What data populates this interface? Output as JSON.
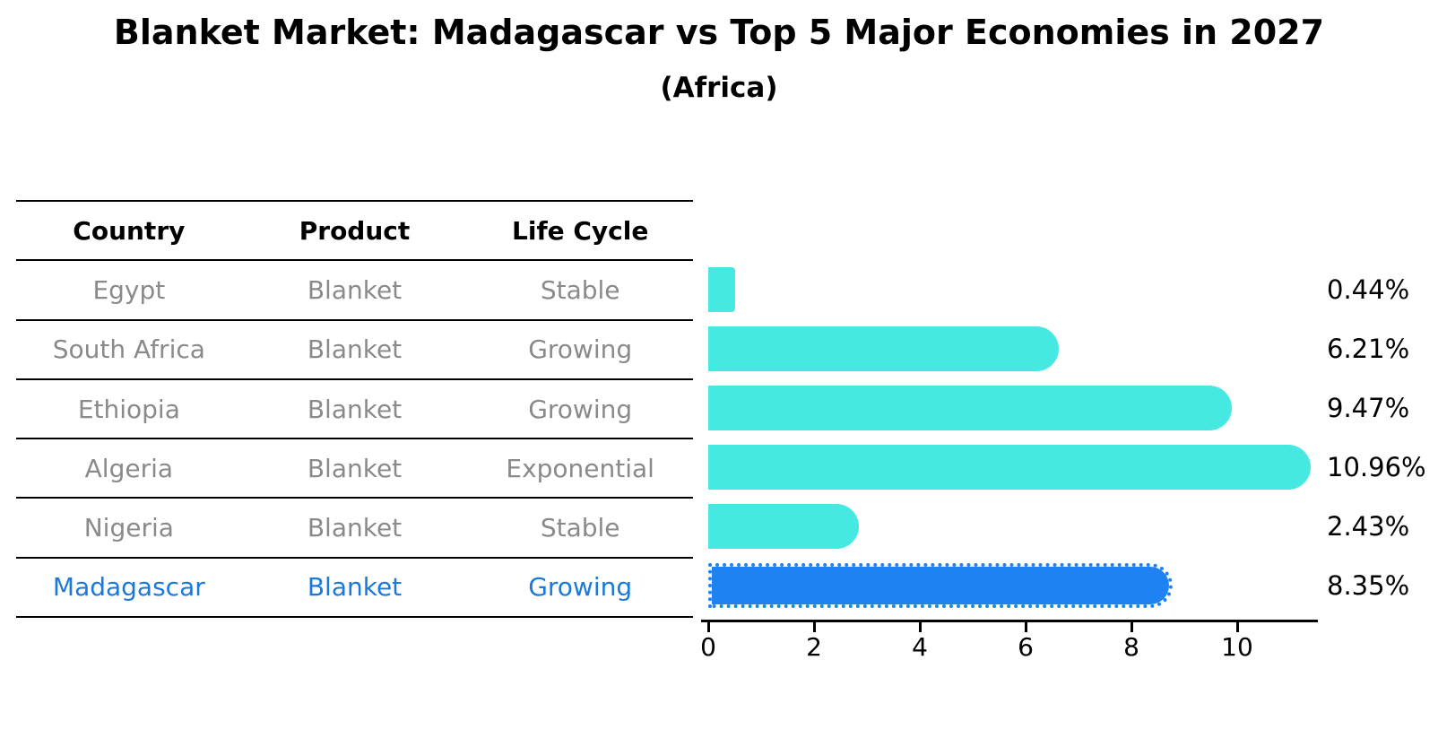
{
  "header": {
    "title": "Blanket Market: Madagascar vs Top 5 Major Economies in 2027",
    "subtitle": "(Africa)"
  },
  "table": {
    "headers": [
      "Country",
      "Product",
      "Life Cycle"
    ],
    "rows": [
      {
        "country": "Egypt",
        "product": "Blanket",
        "life_cycle": "Stable",
        "highlight": false
      },
      {
        "country": "South Africa",
        "product": "Blanket",
        "life_cycle": "Growing",
        "highlight": false
      },
      {
        "country": "Ethiopia",
        "product": "Blanket",
        "life_cycle": "Growing",
        "highlight": false
      },
      {
        "country": "Algeria",
        "product": "Blanket",
        "life_cycle": "Exponential",
        "highlight": false
      },
      {
        "country": "Nigeria",
        "product": "Blanket",
        "life_cycle": "Stable",
        "highlight": false
      },
      {
        "country": "Madagascar",
        "product": "Blanket",
        "life_cycle": "Growing",
        "highlight": true
      }
    ]
  },
  "chart_data": {
    "type": "bar",
    "orientation": "horizontal",
    "title": "Blanket Market: Madagascar vs Top 5 Major Economies in 2027",
    "subtitle": "(Africa)",
    "categories": [
      "Egypt",
      "South Africa",
      "Ethiopia",
      "Algeria",
      "Nigeria",
      "Madagascar"
    ],
    "values": [
      0.44,
      6.21,
      9.47,
      10.96,
      2.43,
      8.35
    ],
    "value_labels": [
      "0.44%",
      "6.21%",
      "9.47%",
      "10.96%",
      "2.43%",
      "8.35%"
    ],
    "x_ticks": [
      0,
      2,
      4,
      6,
      8,
      10
    ],
    "xlim": [
      0,
      11.5
    ],
    "grid": false,
    "legend": false,
    "highlight_index": 5,
    "bar_color": "#46E8E2",
    "highlight_color": "#1E82F2",
    "highlight_border_style": "dotted",
    "highlight_text_color": "#1b79d9",
    "axis_color": "#000000",
    "body_text_color": "#8a8a8a"
  }
}
